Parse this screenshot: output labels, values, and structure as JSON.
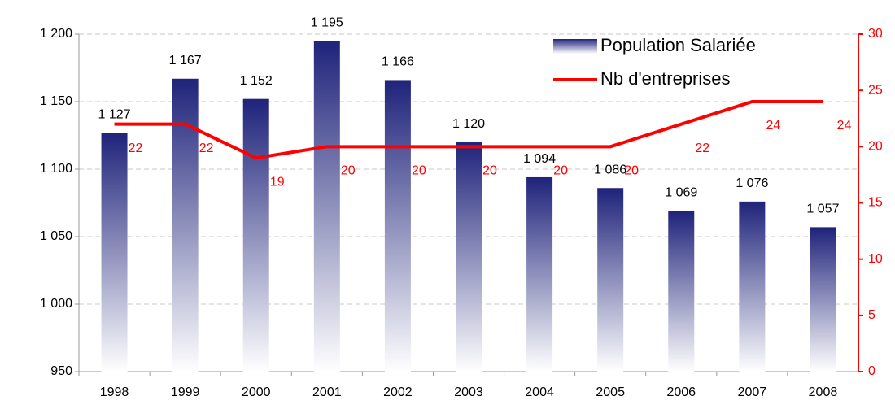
{
  "chart_data": {
    "type": "bar_line",
    "categories": [
      "1998",
      "1999",
      "2000",
      "2001",
      "2002",
      "2003",
      "2004",
      "2005",
      "2006",
      "2007",
      "2008"
    ],
    "series": [
      {
        "name": "Population Salariée",
        "type": "bar",
        "color": "#1f237a",
        "axis": "y",
        "values": [
          1127,
          1167,
          1152,
          1195,
          1166,
          1120,
          1094,
          1086,
          1069,
          1076,
          1057
        ],
        "value_labels": [
          "1 127",
          "1 167",
          "1 152",
          "1 195",
          "1 166",
          "1 120",
          "1 094",
          "1 086",
          "1 069",
          "1 076",
          "1 057"
        ]
      },
      {
        "name": "Nb d'entreprises",
        "type": "line",
        "color": "#ff0000",
        "axis": "y2",
        "values": [
          22,
          22,
          19,
          20,
          20,
          20,
          20,
          20,
          22,
          24,
          24
        ]
      }
    ],
    "ylim": [
      950,
      1200
    ],
    "yticks": [
      950,
      {
        "value": 1000,
        "label": "1 000"
      },
      {
        "value": 1050,
        "label": "1 050"
      },
      {
        "value": 1100,
        "label": "1 100"
      },
      {
        "value": 1150,
        "label": "1 150"
      },
      {
        "value": 1200,
        "label": "1 200"
      }
    ],
    "y2lim": [
      0,
      30
    ],
    "y2ticks": [
      0,
      5,
      10,
      15,
      20,
      25,
      30
    ],
    "grid": true,
    "legend": "upper right"
  }
}
